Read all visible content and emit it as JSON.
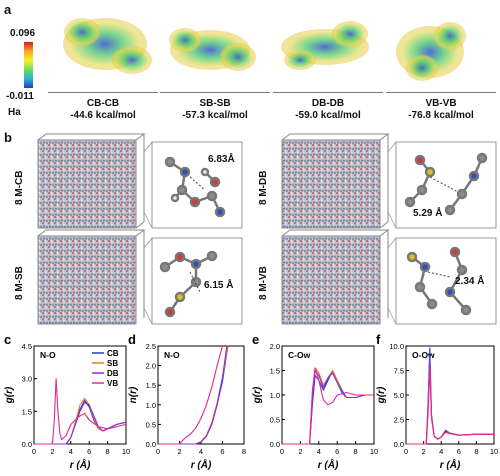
{
  "panel_a": {
    "label": "a",
    "scale_max": "0.096",
    "scale_min": "-0.011",
    "scale_unit": "Ha",
    "pairs": [
      {
        "name": "CB-CB",
        "energy": "-44.6 kcal/mol"
      },
      {
        "name": "SB-SB",
        "energy": "-57.3 kcal/mol"
      },
      {
        "name": "DB-DB",
        "energy": "-59.0 kcal/mol"
      },
      {
        "name": "VB-VB",
        "energy": "-76.8 kcal/mol"
      }
    ]
  },
  "panel_b": {
    "label": "b",
    "boxes": [
      {
        "name": "8 M-CB",
        "distance": "6.83Å"
      },
      {
        "name": "8 M-DB",
        "distance": "5.29 Å"
      },
      {
        "name": "8 M-SB",
        "distance": "6.15 Å"
      },
      {
        "name": "8 M-VB",
        "distance": "2.34 Å"
      }
    ]
  },
  "colors": {
    "CB": "#1f3fbf",
    "SB": "#f07a1a",
    "DB": "#8a2be2",
    "VB": "#e8288a"
  },
  "chart_data": [
    {
      "panel": "c",
      "type": "line",
      "annotation": "N-O",
      "xlabel": "r (Å)",
      "ylabel": "g(r)",
      "xlim": [
        0,
        10
      ],
      "ylim": [
        0,
        4.5
      ],
      "xticks": [
        "0",
        "2",
        "4",
        "6",
        "8",
        "10"
      ],
      "yticks": [
        "0.0",
        "1.5",
        "3.0",
        "4.5"
      ],
      "legend": [
        "CB",
        "SB",
        "DB",
        "VB"
      ],
      "legend_position": "top-right",
      "series": [
        {
          "name": "CB",
          "x": [
            0,
            3.5,
            4,
            4.5,
            5,
            5.5,
            6,
            6.5,
            7,
            7.5,
            8,
            9,
            10
          ],
          "y": [
            0,
            0,
            0.3,
            0.9,
            1.6,
            2.0,
            1.7,
            1.1,
            0.7,
            0.6,
            0.7,
            0.9,
            1.0
          ]
        },
        {
          "name": "SB",
          "x": [
            0,
            3.5,
            4,
            4.5,
            5,
            5.5,
            6,
            6.5,
            7,
            7.5,
            8,
            9,
            10
          ],
          "y": [
            0,
            0,
            0.3,
            1.0,
            1.8,
            2.1,
            1.8,
            1.2,
            0.7,
            0.6,
            0.7,
            0.9,
            1.0
          ]
        },
        {
          "name": "DB",
          "x": [
            0,
            3.5,
            4,
            4.5,
            5,
            5.5,
            6,
            6.5,
            7,
            7.5,
            8,
            9,
            10
          ],
          "y": [
            0,
            0,
            0.3,
            0.9,
            1.5,
            1.9,
            1.8,
            1.3,
            0.8,
            0.6,
            0.7,
            0.9,
            1.0
          ]
        },
        {
          "name": "VB",
          "x": [
            0,
            2,
            2.2,
            2.4,
            2.6,
            2.8,
            3,
            3.5,
            4,
            5,
            5.5,
            6,
            7,
            8,
            9,
            10
          ],
          "y": [
            0,
            0,
            1.0,
            3.0,
            1.5,
            0.5,
            0.2,
            0.4,
            0.9,
            1.3,
            1.4,
            1.1,
            0.8,
            0.7,
            0.8,
            0.9
          ]
        }
      ]
    },
    {
      "panel": "d",
      "type": "line",
      "annotation": "N-O",
      "xlabel": "r (Å)",
      "ylabel": "n(r)",
      "xlim": [
        0,
        8
      ],
      "ylim": [
        0,
        2.5
      ],
      "xticks": [
        "0",
        "2",
        "4",
        "6",
        "8"
      ],
      "yticks": [
        "0.0",
        "0.5",
        "1.0",
        "1.5",
        "2.0",
        "2.5"
      ],
      "series": [
        {
          "name": "CB",
          "x": [
            0,
            3.5,
            4,
            4.5,
            5,
            5.5,
            6,
            6.5
          ],
          "y": [
            0,
            0,
            0.05,
            0.2,
            0.5,
            1.0,
            1.6,
            2.5
          ]
        },
        {
          "name": "SB",
          "x": [
            0,
            3.5,
            4,
            4.5,
            5,
            5.5,
            6,
            6.5
          ],
          "y": [
            0,
            0,
            0.06,
            0.22,
            0.55,
            1.05,
            1.7,
            2.5
          ]
        },
        {
          "name": "DB",
          "x": [
            0,
            3.5,
            4,
            4.5,
            5,
            5.5,
            6,
            6.4
          ],
          "y": [
            0,
            0,
            0.05,
            0.2,
            0.5,
            1.0,
            1.7,
            2.5
          ]
        },
        {
          "name": "VB",
          "x": [
            0,
            2,
            2.5,
            3,
            3.5,
            4,
            4.5,
            5,
            5.5,
            6
          ],
          "y": [
            0,
            0,
            0.15,
            0.25,
            0.4,
            0.65,
            1.0,
            1.45,
            2.0,
            2.5
          ]
        }
      ]
    },
    {
      "panel": "e",
      "type": "line",
      "annotation": "C-Ow",
      "xlabel": "r (Å)",
      "ylabel": "g(r)",
      "xlim": [
        0,
        10
      ],
      "ylim": [
        0,
        2.0
      ],
      "xticks": [
        "0",
        "2",
        "4",
        "6",
        "8",
        "10"
      ],
      "yticks": [
        "0.0",
        "0.5",
        "1.0",
        "1.5",
        "2.0"
      ],
      "series": [
        {
          "name": "CB",
          "x": [
            0,
            3,
            3.3,
            3.6,
            4,
            4.5,
            5,
            5.5,
            6,
            6.5,
            7,
            8,
            9,
            10
          ],
          "y": [
            0,
            0,
            0.8,
            1.4,
            1.3,
            1.1,
            1.3,
            1.5,
            1.3,
            1.1,
            0.95,
            0.95,
            1.0,
            1.0
          ]
        },
        {
          "name": "SB",
          "x": [
            0,
            3,
            3.3,
            3.6,
            4,
            4.5,
            5,
            5.5,
            6,
            6.5,
            7,
            8,
            9,
            10
          ],
          "y": [
            0,
            0,
            1.0,
            1.55,
            1.45,
            1.2,
            1.35,
            1.5,
            1.3,
            1.05,
            0.95,
            0.95,
            1.0,
            1.0
          ]
        },
        {
          "name": "DB",
          "x": [
            0,
            3,
            3.3,
            3.6,
            4,
            4.5,
            5,
            5.5,
            6,
            6.5,
            7,
            8,
            9,
            10
          ],
          "y": [
            0,
            0,
            0.9,
            1.5,
            1.4,
            1.15,
            1.35,
            1.45,
            1.25,
            1.05,
            0.95,
            0.95,
            1.0,
            1.0
          ]
        },
        {
          "name": "VB",
          "x": [
            0,
            3,
            3.3,
            3.6,
            4,
            4.5,
            5,
            5.5,
            6,
            7,
            8,
            9,
            10
          ],
          "y": [
            0,
            0,
            1.1,
            1.55,
            1.3,
            0.9,
            0.8,
            0.85,
            1.0,
            1.05,
            1.0,
            1.0,
            1.0
          ]
        }
      ]
    },
    {
      "panel": "f",
      "type": "line",
      "annotation": "O-Ow",
      "xlabel": "r (Å)",
      "ylabel": "g(r)",
      "xlim": [
        0,
        10
      ],
      "ylim": [
        0,
        10.0
      ],
      "xticks": [
        "0",
        "2",
        "4",
        "6",
        "8",
        "10"
      ],
      "yticks": [
        "0.0",
        "2.5",
        "5.0",
        "7.5",
        "10.0"
      ],
      "series": [
        {
          "name": "CB",
          "x": [
            0,
            2.3,
            2.5,
            2.7,
            2.9,
            3.2,
            3.6,
            4,
            4.5,
            5,
            6,
            8,
            10
          ],
          "y": [
            0,
            0,
            4,
            9.8,
            3,
            0.8,
            0.5,
            0.7,
            1.4,
            1.1,
            0.9,
            1.0,
            1.0
          ]
        },
        {
          "name": "SB",
          "x": [
            0,
            2.3,
            2.5,
            2.7,
            2.9,
            3.2,
            3.6,
            4,
            4.5,
            5,
            6,
            8,
            10
          ],
          "y": [
            0,
            0,
            3.5,
            8.5,
            2.8,
            0.8,
            0.5,
            0.7,
            1.3,
            1.1,
            0.9,
            1.0,
            1.0
          ]
        },
        {
          "name": "DB",
          "x": [
            0,
            2.3,
            2.5,
            2.7,
            2.9,
            3.2,
            3.6,
            4,
            4.5,
            5,
            6,
            8,
            10
          ],
          "y": [
            0,
            0,
            3.5,
            8.8,
            2.8,
            0.8,
            0.5,
            0.7,
            1.3,
            1.1,
            0.9,
            1.0,
            1.0
          ]
        },
        {
          "name": "VB",
          "x": [
            0,
            2.3,
            2.5,
            2.7,
            2.9,
            3.2,
            3.6,
            4,
            4.5,
            5,
            6,
            8,
            10
          ],
          "y": [
            0,
            0,
            3,
            7.8,
            2.6,
            0.8,
            0.5,
            0.7,
            1.2,
            1.05,
            0.9,
            1.0,
            1.0
          ]
        }
      ]
    }
  ]
}
